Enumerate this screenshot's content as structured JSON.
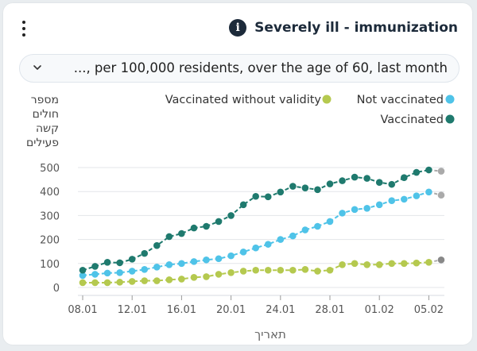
{
  "header": {
    "title": "Severely ill - immunization",
    "info_icon": "info-icon",
    "menu_icon": "kebab-menu-icon"
  },
  "filter": {
    "selected": "..., per 100,000 residents, over the age of 60, last month"
  },
  "chart_data": {
    "type": "line",
    "ylabel": "מספר חולים קשה פעילים",
    "ylabel_lines": [
      "מספר",
      "חולים",
      "קשה",
      "פעילים"
    ],
    "xlabel": "תאריך",
    "ylim": [
      0,
      500
    ],
    "y_ticks": [
      0,
      100,
      200,
      300,
      400,
      500
    ],
    "x_tick_labels": [
      "08.01",
      "12.01",
      "16.01",
      "20.01",
      "24.01",
      "28.01",
      "01.02",
      "05.02"
    ],
    "categories": [
      "08.01",
      "09.01",
      "10.01",
      "11.01",
      "12.01",
      "13.01",
      "14.01",
      "15.01",
      "16.01",
      "17.01",
      "18.01",
      "19.01",
      "20.01",
      "21.01",
      "22.01",
      "23.01",
      "24.01",
      "25.01",
      "26.01",
      "27.01",
      "28.01",
      "29.01",
      "30.01",
      "31.01",
      "01.02",
      "02.02",
      "03.02",
      "04.02",
      "05.02",
      "06.02"
    ],
    "legend": [
      {
        "name": "Vaccinated without validity",
        "color": "#b5c94f"
      },
      {
        "name": "Not vaccinated",
        "color": "#4fc3e8"
      },
      {
        "name": "Vaccinated",
        "color": "#1f7a6e"
      }
    ],
    "series": [
      {
        "name": "Vaccinated",
        "color": "#1f7a6e",
        "values": [
          72,
          88,
          105,
          103,
          118,
          142,
          175,
          212,
          225,
          248,
          255,
          275,
          300,
          345,
          380,
          378,
          398,
          422,
          415,
          408,
          432,
          445,
          460,
          455,
          438,
          430,
          458,
          480,
          490,
          485
        ]
      },
      {
        "name": "Not vaccinated",
        "color": "#4fc3e8",
        "values": [
          50,
          55,
          60,
          62,
          68,
          75,
          85,
          95,
          100,
          108,
          115,
          120,
          132,
          148,
          165,
          180,
          200,
          215,
          240,
          255,
          275,
          310,
          325,
          330,
          345,
          362,
          368,
          382,
          398,
          385
        ]
      },
      {
        "name": "Vaccinated without validity",
        "color": "#b5c94f",
        "values": [
          20,
          20,
          20,
          22,
          25,
          28,
          28,
          32,
          35,
          42,
          45,
          55,
          62,
          68,
          72,
          72,
          72,
          72,
          75,
          68,
          72,
          95,
          100,
          95,
          95,
          100,
          100,
          102,
          105,
          115
        ]
      }
    ],
    "last_point_color": "#aaaaaa"
  }
}
